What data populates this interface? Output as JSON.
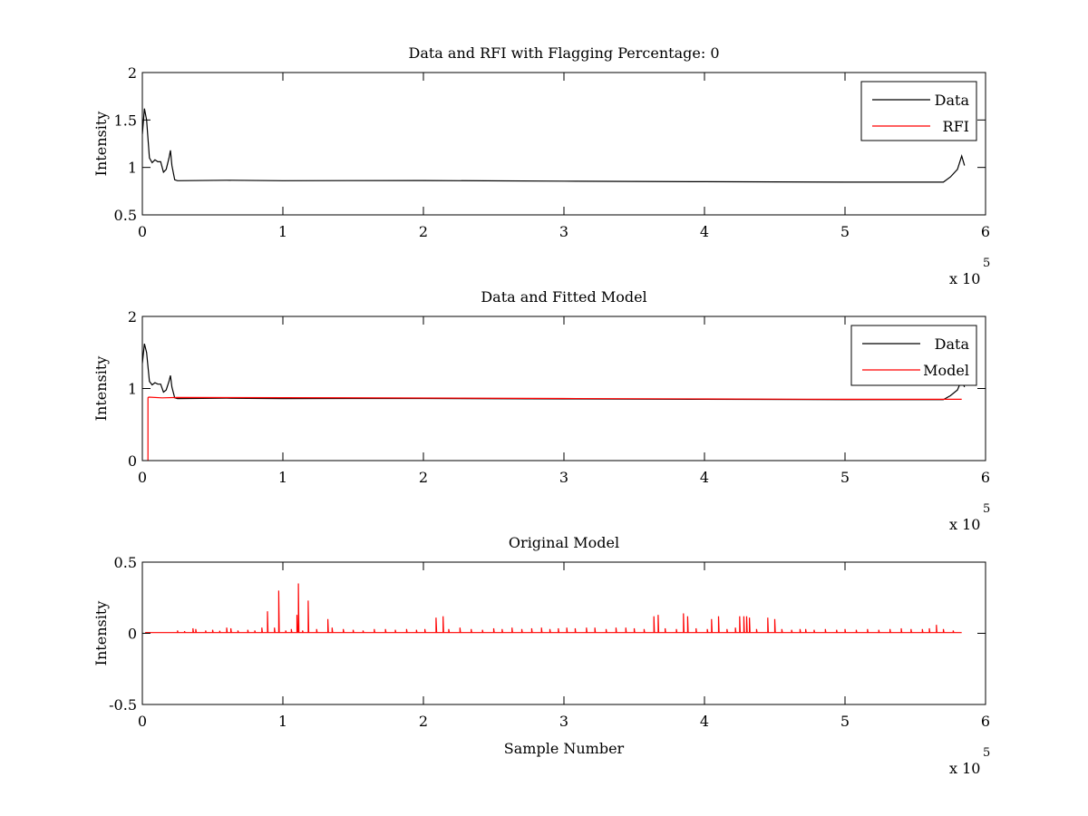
{
  "chart_data": [
    {
      "type": "line",
      "title": "Data and RFI with Flagging Percentage: 0",
      "xlabel": "",
      "ylabel": "Intensity",
      "xlim": [
        0,
        600000
      ],
      "ylim": [
        0.5,
        2
      ],
      "x_ticks": [
        0,
        1,
        2,
        3,
        4,
        5,
        6
      ],
      "x_tick_labels": [
        "0",
        "1",
        "2",
        "3",
        "4",
        "5",
        "6"
      ],
      "y_ticks": [
        0.5,
        1,
        1.5,
        2
      ],
      "y_tick_labels": [
        "0.5",
        "1",
        "1.5",
        "2"
      ],
      "x_multiplier": "x 10",
      "x_multiplier_exp": "5",
      "legend": {
        "placement": "top-right",
        "entries": [
          "Data",
          "RFI"
        ]
      },
      "grid": false,
      "series": [
        {
          "name": "Data",
          "color": "#000000",
          "x": [
            0,
            1500,
            3000,
            5000,
            7000,
            9000,
            11000,
            13000,
            15000,
            17000,
            19000,
            20000,
            21000,
            23000,
            25000,
            60000,
            100000,
            200000,
            300000,
            400000,
            500000,
            570000,
            575000,
            580000,
            583000,
            585000
          ],
          "y": [
            1.35,
            1.62,
            1.5,
            1.1,
            1.05,
            1.08,
            1.06,
            1.06,
            0.95,
            0.98,
            1.1,
            1.18,
            1.02,
            0.87,
            0.86,
            0.865,
            0.86,
            0.862,
            0.855,
            0.85,
            0.845,
            0.845,
            0.9,
            0.98,
            1.12,
            1.02
          ]
        },
        {
          "name": "RFI",
          "color": "#ff0000",
          "x": [],
          "y": []
        }
      ]
    },
    {
      "type": "line",
      "title": "Data and Fitted Model",
      "xlabel": "",
      "ylabel": "Intensity",
      "xlim": [
        0,
        600000
      ],
      "ylim": [
        0,
        2
      ],
      "x_ticks": [
        0,
        1,
        2,
        3,
        4,
        5,
        6
      ],
      "x_tick_labels": [
        "0",
        "1",
        "2",
        "3",
        "4",
        "5",
        "6"
      ],
      "y_ticks": [
        0,
        1,
        2
      ],
      "y_tick_labels": [
        "0",
        "1",
        "2"
      ],
      "x_multiplier": "x 10",
      "x_multiplier_exp": "5",
      "legend": {
        "placement": "top-right",
        "entries": [
          "Data",
          "Model"
        ]
      },
      "grid": false,
      "series": [
        {
          "name": "Data",
          "color": "#000000",
          "x": [
            0,
            1500,
            3000,
            5000,
            7000,
            9000,
            11000,
            13000,
            15000,
            17000,
            19000,
            20000,
            21000,
            23000,
            25000,
            60000,
            100000,
            200000,
            300000,
            400000,
            500000,
            570000,
            575000,
            580000,
            583000,
            585000
          ],
          "y": [
            1.35,
            1.62,
            1.5,
            1.1,
            1.05,
            1.08,
            1.06,
            1.06,
            0.95,
            0.98,
            1.1,
            1.18,
            1.02,
            0.87,
            0.86,
            0.865,
            0.86,
            0.862,
            0.855,
            0.85,
            0.845,
            0.845,
            0.9,
            0.98,
            1.12,
            1.02
          ]
        },
        {
          "name": "Model",
          "color": "#ff0000",
          "x": [
            4000,
            4000,
            4500,
            14000,
            25000,
            100000,
            200000,
            300000,
            400000,
            500000,
            583000
          ],
          "y": [
            0,
            0.87,
            0.88,
            0.87,
            0.875,
            0.873,
            0.868,
            0.862,
            0.855,
            0.85,
            0.85
          ]
        }
      ]
    },
    {
      "type": "line",
      "title": "Original Model",
      "xlabel": "Sample Number",
      "ylabel": "Intensity",
      "xlim": [
        0,
        600000
      ],
      "ylim": [
        -0.5,
        0.5
      ],
      "x_ticks": [
        0,
        1,
        2,
        3,
        4,
        5,
        6
      ],
      "x_tick_labels": [
        "0",
        "1",
        "2",
        "3",
        "4",
        "5",
        "6"
      ],
      "y_ticks": [
        -0.5,
        0,
        0.5
      ],
      "y_tick_labels": [
        "-0.5",
        "0",
        "0.5"
      ],
      "x_multiplier": "x 10",
      "x_multiplier_exp": "5",
      "legend": null,
      "grid": false,
      "series": [
        {
          "color": "#ff0000",
          "baseline": 0.005,
          "x_range": [
            2000,
            583000
          ],
          "spikes": [
            [
              25000,
              0.02
            ],
            [
              30000,
              0.015
            ],
            [
              36000,
              0.035
            ],
            [
              38000,
              0.03
            ],
            [
              45000,
              0.02
            ],
            [
              50000,
              0.025
            ],
            [
              55000,
              0.018
            ],
            [
              60000,
              0.04
            ],
            [
              63000,
              0.035
            ],
            [
              68000,
              0.02
            ],
            [
              75000,
              0.025
            ],
            [
              80000,
              0.02
            ],
            [
              85000,
              0.04
            ],
            [
              89000,
              0.155
            ],
            [
              94000,
              0.04
            ],
            [
              97000,
              0.3
            ],
            [
              102000,
              0.02
            ],
            [
              106000,
              0.03
            ],
            [
              110000,
              0.13
            ],
            [
              111000,
              0.35
            ],
            [
              114000,
              0.02
            ],
            [
              118000,
              0.23
            ],
            [
              124000,
              0.03
            ],
            [
              132000,
              0.1
            ],
            [
              135000,
              0.04
            ],
            [
              143000,
              0.03
            ],
            [
              150000,
              0.025
            ],
            [
              157000,
              0.02
            ],
            [
              165000,
              0.03
            ],
            [
              173000,
              0.03
            ],
            [
              180000,
              0.025
            ],
            [
              188000,
              0.03
            ],
            [
              195000,
              0.025
            ],
            [
              201000,
              0.03
            ],
            [
              209000,
              0.11
            ],
            [
              214000,
              0.12
            ],
            [
              218000,
              0.03
            ],
            [
              226000,
              0.04
            ],
            [
              234000,
              0.03
            ],
            [
              242000,
              0.025
            ],
            [
              250000,
              0.035
            ],
            [
              256000,
              0.03
            ],
            [
              263000,
              0.04
            ],
            [
              270000,
              0.03
            ],
            [
              277000,
              0.035
            ],
            [
              284000,
              0.04
            ],
            [
              290000,
              0.03
            ],
            [
              296000,
              0.035
            ],
            [
              302000,
              0.04
            ],
            [
              308000,
              0.035
            ],
            [
              316000,
              0.04
            ],
            [
              322000,
              0.04
            ],
            [
              330000,
              0.03
            ],
            [
              337000,
              0.04
            ],
            [
              344000,
              0.04
            ],
            [
              350000,
              0.035
            ],
            [
              357000,
              0.03
            ],
            [
              364000,
              0.12
            ],
            [
              367000,
              0.13
            ],
            [
              372000,
              0.035
            ],
            [
              380000,
              0.03
            ],
            [
              385000,
              0.14
            ],
            [
              388000,
              0.12
            ],
            [
              394000,
              0.035
            ],
            [
              402000,
              0.03
            ],
            [
              405000,
              0.1
            ],
            [
              410000,
              0.12
            ],
            [
              416000,
              0.03
            ],
            [
              422000,
              0.04
            ],
            [
              425000,
              0.12
            ],
            [
              428000,
              0.12
            ],
            [
              430000,
              0.12
            ],
            [
              432000,
              0.11
            ],
            [
              437000,
              0.03
            ],
            [
              445000,
              0.11
            ],
            [
              450000,
              0.1
            ],
            [
              455000,
              0.03
            ],
            [
              462000,
              0.025
            ],
            [
              468000,
              0.03
            ],
            [
              472000,
              0.03
            ],
            [
              478000,
              0.025
            ],
            [
              486000,
              0.03
            ],
            [
              494000,
              0.025
            ],
            [
              500000,
              0.03
            ],
            [
              508000,
              0.025
            ],
            [
              516000,
              0.03
            ],
            [
              524000,
              0.025
            ],
            [
              532000,
              0.03
            ],
            [
              540000,
              0.035
            ],
            [
              547000,
              0.03
            ],
            [
              555000,
              0.03
            ],
            [
              560000,
              0.035
            ],
            [
              565000,
              0.06
            ],
            [
              570000,
              0.03
            ],
            [
              577000,
              0.02
            ]
          ]
        }
      ]
    }
  ]
}
